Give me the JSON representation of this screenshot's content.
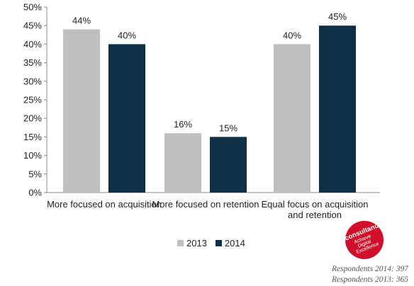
{
  "chart_data": {
    "type": "bar",
    "categories": [
      [
        "More focused on acquisition"
      ],
      [
        "More focused on retention"
      ],
      [
        "Equal focus on acquisition",
        "and retention"
      ]
    ],
    "series": [
      {
        "name": "2013",
        "color": "#bfbfbf",
        "values": [
          44,
          16,
          40
        ],
        "labels": [
          "44%",
          "16%",
          "40%"
        ]
      },
      {
        "name": "2014",
        "color": "#0e2f44",
        "values": [
          40,
          15,
          45
        ],
        "labels": [
          "40%",
          "15%",
          "45%"
        ]
      }
    ],
    "ylim": [
      0,
      50
    ],
    "yticks": [
      0,
      5,
      10,
      15,
      20,
      25,
      30,
      35,
      40,
      45,
      50
    ],
    "ytick_labels": [
      "0%",
      "5%",
      "10%",
      "15%",
      "20%",
      "25%",
      "30%",
      "35%",
      "40%",
      "45%",
      "50%"
    ],
    "grid": false,
    "legend_position": "bottom"
  },
  "logo": {
    "name": "Econsultancy",
    "tagline": [
      "Achieve",
      "Digital",
      "Excellence"
    ],
    "color": "#d0102a"
  },
  "respondents": {
    "line1": "Respondents 2014: 397",
    "line2": "Respondents 2013: 365"
  }
}
